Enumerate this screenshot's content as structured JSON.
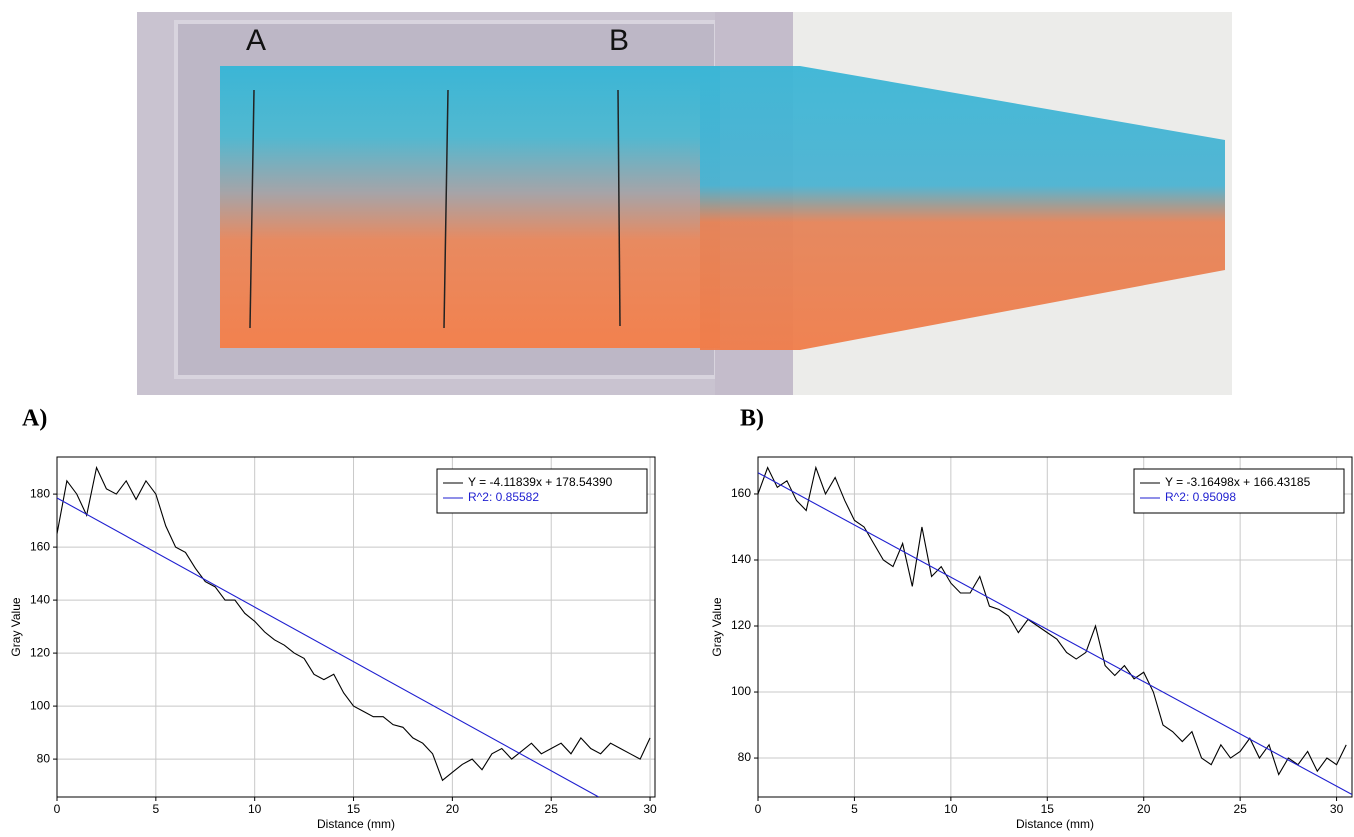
{
  "photo": {
    "labels": [
      "A",
      "B"
    ]
  },
  "chart_data": [
    {
      "type": "line",
      "title": "A)",
      "x_label": "Distance (mm)",
      "y_label": "Gray Value",
      "xlim": [
        0,
        30.25
      ],
      "ylim": [
        65.7,
        194
      ],
      "xticks": [
        0,
        5,
        10,
        15,
        20,
        25,
        30
      ],
      "yticks": [
        80,
        100,
        120,
        140,
        160,
        180
      ],
      "grid": true,
      "legend": "top-right",
      "series": [
        {
          "name": "Y = -4.11839x + 178.54390",
          "color": "#000000",
          "x": [
            0,
            0.5,
            1,
            1.5,
            2,
            2.5,
            3,
            3.5,
            4,
            4.5,
            5,
            5.5,
            6,
            6.5,
            7,
            7.5,
            8,
            8.5,
            9,
            9.5,
            10,
            10.5,
            11,
            11.5,
            12,
            12.5,
            13,
            13.5,
            14,
            14.5,
            15,
            15.5,
            16,
            16.5,
            17,
            17.5,
            18,
            18.5,
            19,
            19.5,
            20,
            20.5,
            21,
            21.5,
            22,
            22.5,
            23,
            23.5,
            24,
            24.5,
            25,
            25.5,
            26,
            26.5,
            27,
            27.5,
            28,
            28.5,
            29,
            29.5,
            30
          ],
          "values": [
            165,
            185,
            180,
            172,
            190,
            182,
            180,
            185,
            178,
            185,
            180,
            168,
            160,
            158,
            152,
            147,
            145,
            140,
            140,
            135,
            132,
            128,
            125,
            123,
            120,
            118,
            112,
            110,
            112,
            105,
            100,
            98,
            96,
            96,
            93,
            92,
            88,
            86,
            82,
            72,
            75,
            78,
            80,
            76,
            82,
            84,
            80,
            83,
            86,
            82,
            84,
            86,
            82,
            88,
            84,
            82,
            86,
            84,
            82,
            80,
            88
          ]
        },
        {
          "name": "R^2: 0.85582",
          "color": "#1f1fd0",
          "x": [
            0,
            27.4
          ],
          "values": [
            178.5439,
            65.7
          ]
        }
      ]
    },
    {
      "type": "line",
      "title": "B)",
      "x_label": "Distance (mm)",
      "y_label": "Gray Value",
      "xlim": [
        0,
        30.8
      ],
      "ylim": [
        68.2,
        171.2
      ],
      "xticks": [
        0,
        5,
        10,
        15,
        20,
        25,
        30
      ],
      "yticks": [
        80,
        100,
        120,
        140,
        160
      ],
      "grid": true,
      "legend": "top-right",
      "series": [
        {
          "name": "Y = -3.16498x + 166.43185",
          "color": "#000000",
          "x": [
            0,
            0.5,
            1,
            1.5,
            2,
            2.5,
            3,
            3.5,
            4,
            4.5,
            5,
            5.5,
            6,
            6.5,
            7,
            7.5,
            8,
            8.5,
            9,
            9.5,
            10,
            10.5,
            11,
            11.5,
            12,
            12.5,
            13,
            13.5,
            14,
            14.5,
            15,
            15.5,
            16,
            16.5,
            17,
            17.5,
            18,
            18.5,
            19,
            19.5,
            20,
            20.5,
            21,
            21.5,
            22,
            22.5,
            23,
            23.5,
            24,
            24.5,
            25,
            25.5,
            26,
            26.5,
            27,
            27.5,
            28,
            28.5,
            29,
            29.5,
            30,
            30.5
          ],
          "values": [
            160,
            168,
            162,
            164,
            158,
            155,
            168,
            160,
            165,
            158,
            152,
            150,
            145,
            140,
            138,
            145,
            132,
            150,
            135,
            138,
            133,
            130,
            130,
            135,
            126,
            125,
            123,
            118,
            122,
            120,
            118,
            116,
            112,
            110,
            112,
            120,
            108,
            105,
            108,
            104,
            106,
            100,
            90,
            88,
            85,
            88,
            80,
            78,
            84,
            80,
            82,
            86,
            80,
            84,
            75,
            80,
            78,
            82,
            76,
            80,
            78,
            84
          ]
        },
        {
          "name": "R^2: 0.95098",
          "color": "#1f1fd0",
          "x": [
            0,
            30.8
          ],
          "values": [
            166.43185,
            68.95
          ]
        }
      ]
    }
  ]
}
